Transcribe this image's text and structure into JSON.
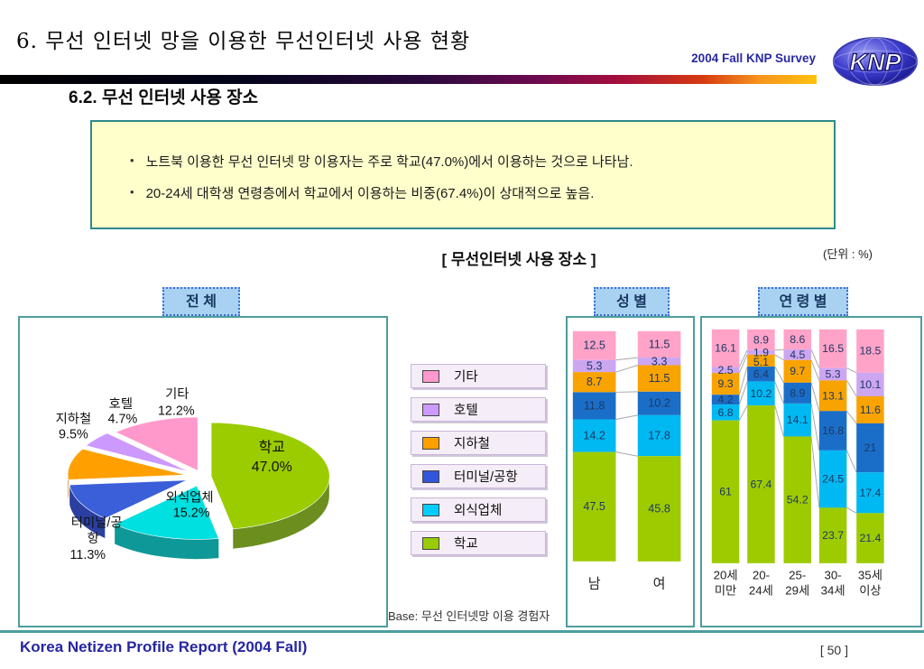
{
  "slide": {
    "title": "6. 무선 인터넷 망을 이용한 무선인터넷 사용 현황",
    "survey_label": "2004 Fall KNP Survey",
    "logo_text": "KNP",
    "subtitle": "6.2.  무선 인터넷 사용 장소",
    "footer": "Korea Netizen Profile Report (2004 Fall)",
    "page_number": "[ 50 ]"
  },
  "summary_box": {
    "bullets": [
      "노트북 이용한 무선 인터넷 망 이용자는 주로 학교(47.0%)에서 이용하는 것으로 나타남.",
      "20-24세 대학생 연령층에서 학교에서 이용하는 비중(67.4%)이 상대적으로 높음."
    ]
  },
  "chart_header": {
    "title": "[ 무선인터넷 사용 장소 ]",
    "unit": "(단위 : %)",
    "base_note": "Base: 무선 인터넷망 이용 경험자"
  },
  "chart_data": {
    "type": "combo",
    "unit": "%",
    "legend_position": "middle-column",
    "categories": [
      {
        "name": "기타",
        "legend_color": "#ff99cc",
        "bar_color": "#ffa3c8"
      },
      {
        "name": "호텔",
        "legend_color": "#cc99ff",
        "bar_color": "#cda6f2"
      },
      {
        "name": "지하철",
        "legend_color": "#ffa000",
        "bar_color": "#f9a300"
      },
      {
        "name": "터미널/공항",
        "legend_color": "#3355dd",
        "bar_color": "#1a6ec8"
      },
      {
        "name": "외식업체",
        "legend_color": "#00ccff",
        "bar_color": "#00b9f2"
      },
      {
        "name": "학교",
        "legend_color": "#99cc00",
        "bar_color": "#9dcb00"
      }
    ],
    "pie": {
      "title": "전 체",
      "type": "pie",
      "style": "3d-exploded, clockwise from 12 o'clock",
      "slices": [
        {
          "name": "학교",
          "value": 47.0,
          "label": "47.0%",
          "color": "#9acc00",
          "side": "#6b8e1e",
          "explode": 0.07
        },
        {
          "name": "외식업체",
          "value": 15.2,
          "label": "15.2%",
          "color": "#00e0e0",
          "side": "#0e9898",
          "explode": 0.18
        },
        {
          "name": "터미널/공항",
          "value": 11.3,
          "label": "11.3%",
          "label_lines": [
            "터미널/공",
            "항",
            "11.3%"
          ],
          "color": "#3a5fd8",
          "side": "#2a3fa0",
          "explode": 0.15
        },
        {
          "name": "지하철",
          "value": 9.5,
          "label": "9.5%",
          "color": "#ffa000",
          "side": "#b37000",
          "explode": 0.15
        },
        {
          "name": "호텔",
          "value": 4.7,
          "label": "4.7%",
          "color": "#cc99ff",
          "side": "#9966cc",
          "explode": 0.15
        },
        {
          "name": "기타",
          "value": 12.2,
          "label": "12.2%",
          "color": "#ff99cc",
          "side": "#cc6699",
          "explode": 0.12
        }
      ]
    },
    "gender": {
      "title": "성 별",
      "type": "bar",
      "stacked": true,
      "stack_order_top_to_bottom": [
        "기타",
        "호텔",
        "지하철",
        "터미널/공항",
        "외식업체",
        "학교"
      ],
      "bars": [
        {
          "label": "남",
          "values": [
            12.5,
            5.3,
            8.7,
            11.8,
            14.2,
            47.5
          ]
        },
        {
          "label": "여",
          "values": [
            11.5,
            3.3,
            11.5,
            10.2,
            17.8,
            45.8
          ]
        }
      ]
    },
    "age": {
      "title": "연 령 별",
      "type": "bar",
      "stacked": true,
      "stack_order_top_to_bottom": [
        "기타",
        "호텔",
        "지하철",
        "터미널/공항",
        "외식업체",
        "학교"
      ],
      "bars": [
        {
          "label": "20세 미만",
          "label_lines": [
            "20세",
            "미만"
          ],
          "values": [
            16.1,
            2.5,
            9.3,
            4.2,
            6.8,
            61
          ]
        },
        {
          "label": "20-24세",
          "label_lines": [
            "20-",
            "24세"
          ],
          "values": [
            8.9,
            1.9,
            5.1,
            6.4,
            10.2,
            67.4
          ]
        },
        {
          "label": "25-29세",
          "label_lines": [
            "25-",
            "29세"
          ],
          "values": [
            8.6,
            4.5,
            9.7,
            8.9,
            14.1,
            54.2
          ]
        },
        {
          "label": "30-34세",
          "label_lines": [
            "30-",
            "34세"
          ],
          "values": [
            16.5,
            5.3,
            13.1,
            16.8,
            24.5,
            23.7
          ]
        },
        {
          "label": "35세 이상",
          "label_lines": [
            "35세",
            "이상"
          ],
          "values": [
            18.5,
            10.1,
            11.6,
            21,
            17.4,
            21.4
          ]
        }
      ]
    }
  },
  "colors": {
    "panel_border": "#4e9d9d",
    "header_fill": "#a9d2f2",
    "header_border": "#3b6fd4",
    "note_bg": "#ffffcc",
    "note_border": "#2e8b8b",
    "footer_text": "#2626a0",
    "survey_text": "#2929a3",
    "value_label": "#1f3864"
  }
}
